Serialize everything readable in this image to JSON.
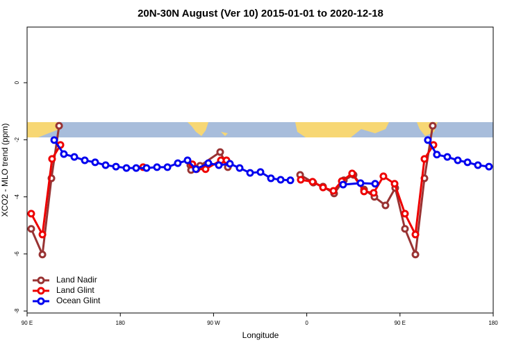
{
  "chart_data": {
    "type": "line",
    "title": "20N-30N August (Ver 10)   2015-01-01 to 2020-12-18",
    "xlabel": "Longitude",
    "ylabel": "XCO2 - MLO trend (ppm)",
    "xlim": [
      90,
      540
    ],
    "ylim": [
      -8.07,
      1.95
    ],
    "xticks": [
      {
        "value": 90,
        "label": "90 E"
      },
      180,
      {
        "value": 270,
        "label": "90 W"
      },
      {
        "value": 360,
        "label": "0"
      },
      {
        "value": 450,
        "label": "90 E"
      },
      {
        "value": 540,
        "label": "180"
      }
    ],
    "yticks": [
      0,
      -2,
      -4,
      -6,
      -8
    ],
    "legend": "bottom-left",
    "series": [
      {
        "name": "Land Nadir",
        "color": "#993333",
        "x": [
          94.0,
          104.8,
          113.5,
          120.9,
          null,
          247.6,
          248.3,
          257.0,
          276.4,
          283.8,
          null,
          353.6,
          366.3,
          375.7,
          386.4,
          395.8,
          405.2,
          415.3,
          425.3,
          436.0,
          445.4,
          454.8,
          464.9,
          473.6,
          481.6
        ],
        "values": [
          -5.12,
          -6.02,
          -3.35,
          -1.51,
          null,
          -2.89,
          -3.06,
          -2.91,
          -2.43,
          -2.96,
          null,
          -3.23,
          -3.5,
          -3.64,
          -3.88,
          -3.42,
          -3.23,
          -3.74,
          -4.0,
          -4.3,
          -3.69,
          -5.12,
          -6.02,
          -3.35,
          -1.51
        ]
      },
      {
        "name": "Land Glint",
        "color": "#ee0000",
        "x": [
          94.0,
          104.8,
          114.1,
          122.2,
          null,
          202.0,
          null,
          249.6,
          253.6,
          262.3,
          277.1,
          282.5,
          null,
          354.2,
          365.6,
          375.7,
          385.7,
          393.8,
          403.8,
          415.3,
          424.6,
          434.0,
          444.8,
          454.8,
          464.9,
          473.6,
          482.3
        ],
        "values": [
          -4.59,
          -5.32,
          -2.67,
          -2.18,
          null,
          -2.96,
          null,
          -2.86,
          -3.03,
          -3.03,
          -2.72,
          -2.72,
          null,
          -3.4,
          -3.47,
          -3.67,
          -3.79,
          -3.45,
          -3.18,
          -3.81,
          -3.86,
          -3.28,
          -3.54,
          -4.59,
          -5.32,
          -2.67,
          -2.18
        ]
      },
      {
        "name": "Ocean Glint",
        "color": "#0000ee",
        "x": [
          116.2,
          125.5,
          135.6,
          145.7,
          155.7,
          165.8,
          175.8,
          185.9,
          195.3,
          205.3,
          215.4,
          225.5,
          235.5,
          244.9,
          253.0,
          265.0,
          275.1,
          285.8,
          295.2,
          305.3,
          315.3,
          325.4,
          334.8,
          344.2,
          null,
          395.1,
          411.9,
          426.0,
          null,
          476.9,
          485.6,
          495.7,
          505.8,
          515.2,
          525.2,
          535.9
        ],
        "values": [
          -2.01,
          -2.5,
          -2.6,
          -2.72,
          -2.79,
          -2.89,
          -2.94,
          -2.99,
          -2.99,
          -2.99,
          -2.96,
          -2.96,
          -2.82,
          -2.72,
          -3.03,
          -2.82,
          -2.89,
          -2.84,
          -2.99,
          -3.16,
          -3.13,
          -3.35,
          -3.4,
          -3.42,
          null,
          -3.57,
          -3.52,
          -3.54,
          null,
          -2.01,
          -2.52,
          -2.6,
          -2.72,
          -2.79,
          -2.89,
          -2.94
        ]
      }
    ]
  }
}
